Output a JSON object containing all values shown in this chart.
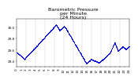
{
  "title": "Barometric Pressure\nper Minute\n(24 Hours)",
  "dot_color": "#0000dd",
  "dot_size": 0.3,
  "background_color": "#ffffff",
  "grid_color": "#999999",
  "ylim": [
    29.3,
    30.15
  ],
  "xlim": [
    0,
    1440
  ],
  "ytick_labels": [
    "29.4",
    "29.6",
    "29.8",
    "30.0"
  ],
  "ytick_values": [
    29.4,
    29.6,
    29.8,
    30.0
  ],
  "xtick_values": [
    0,
    60,
    120,
    180,
    240,
    300,
    360,
    420,
    480,
    540,
    600,
    660,
    720,
    780,
    840,
    900,
    960,
    1020,
    1080,
    1140,
    1200,
    1260,
    1320,
    1380,
    1440
  ],
  "vgrid_positions": [
    120,
    240,
    360,
    480,
    600,
    720,
    840,
    960,
    1080,
    1200,
    1320
  ],
  "title_fontsize": 4.5,
  "tick_fontsize": 3.0
}
